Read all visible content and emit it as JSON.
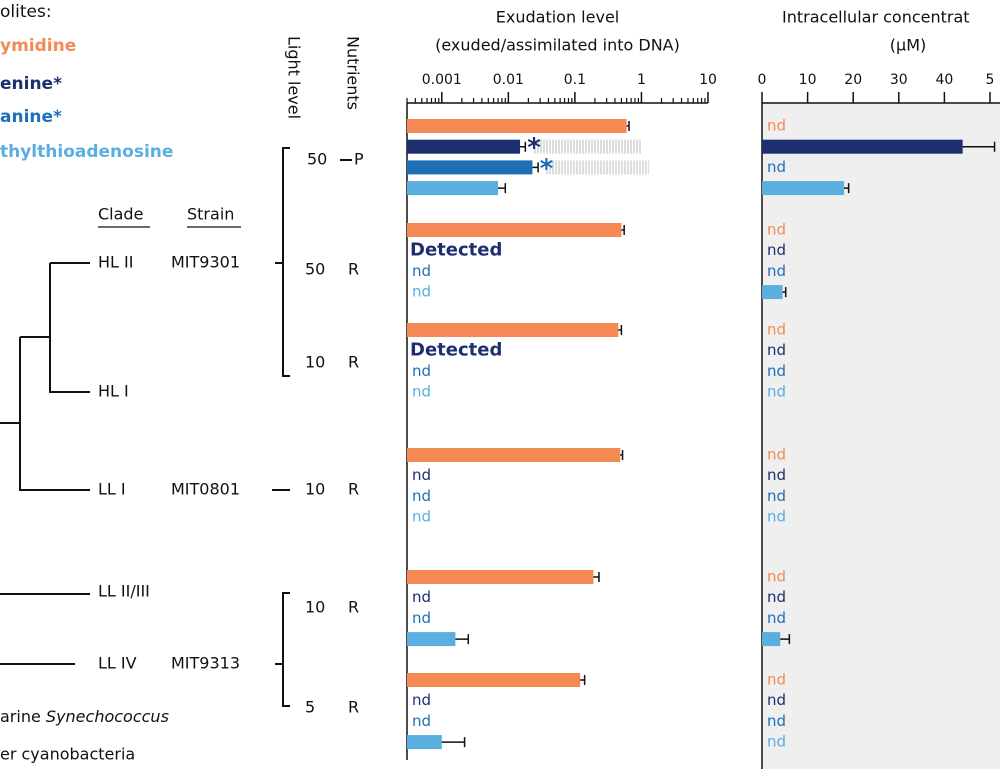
{
  "legend": {
    "title": "olites:"
  },
  "tree": {
    "headers": [
      "Clade",
      "Strain"
    ],
    "clades": [
      "HL II",
      "HL I",
      "LL I",
      "LL II/III",
      "LL IV"
    ],
    "strains": [
      "MIT9301",
      "MIT0801",
      "MIT9313"
    ],
    "outgroups": [
      "arine",
      "Synechococcus",
      "er cyanobacteria"
    ]
  },
  "conditions": {
    "headers": [
      "Light level",
      "Nutrients"
    ],
    "light": [
      50,
      50,
      10,
      10,
      10,
      5
    ],
    "nutrients": [
      "P",
      "R",
      "R",
      "R",
      "R",
      "R"
    ]
  },
  "chart_data": [
    {
      "type": "bar",
      "title": [
        "Exudation level",
        "(exuded/assimilated into DNA)"
      ],
      "log": true,
      "xlim": [
        0.0003,
        10
      ],
      "xticks": [
        0.001,
        0.01,
        0.1,
        1,
        10
      ],
      "series": [
        {
          "name": "ymidine",
          "color": "#f58a55",
          "values": [
            0.6,
            0.5,
            0.45,
            0.48,
            0.19,
            0.12
          ],
          "errors": [
            0.05,
            0.05,
            0.05,
            0.04,
            0.04,
            0.02
          ],
          "notes": [
            null,
            null,
            null,
            null,
            null,
            null
          ]
        },
        {
          "name": "enine*",
          "color": "#1d2f6f",
          "values": [
            0.015,
            null,
            null,
            null,
            null,
            null
          ],
          "errors": [
            0.003,
            null,
            null,
            null,
            null,
            null
          ],
          "notes": [
            null,
            "Detected",
            "Detected",
            "nd",
            "nd",
            "nd"
          ],
          "upper_values": [
            1,
            null,
            null,
            null,
            null,
            null
          ],
          "annotations": [
            "*",
            null,
            null,
            null,
            null,
            null
          ]
        },
        {
          "name": "anine*",
          "color": "#1f6fb8",
          "values": [
            0.023,
            null,
            null,
            null,
            null,
            null
          ],
          "errors": [
            0.005,
            null,
            null,
            null,
            null,
            null
          ],
          "notes": [
            null,
            "nd",
            "nd",
            "nd",
            "nd",
            "nd"
          ],
          "upper_values": [
            1.3,
            null,
            null,
            null,
            null,
            null
          ],
          "annotations": [
            "*",
            null,
            null,
            null,
            null,
            null
          ]
        },
        {
          "name": "thylthioadenosine",
          "color": "#5aaee0",
          "values": [
            0.007,
            null,
            null,
            null,
            0.0016,
            0.001
          ],
          "errors": [
            0.002,
            null,
            null,
            null,
            0.0009,
            0.0012
          ],
          "notes": [
            null,
            "nd",
            "nd",
            "nd",
            null,
            null
          ]
        }
      ]
    },
    {
      "type": "bar",
      "title": [
        "Intracellular concentrat",
        "(μM)"
      ],
      "log": false,
      "xlim": [
        0,
        50
      ],
      "xticks": [
        0,
        10,
        20,
        30,
        40,
        {
          "value": 50,
          "label": "5"
        }
      ],
      "background": "#efefef",
      "series": [
        {
          "color": "#f58a55",
          "values": [
            null,
            null,
            null,
            null,
            null,
            null
          ],
          "errors": [
            null,
            null,
            null,
            null,
            null,
            null
          ],
          "notes": [
            "nd",
            "nd",
            "nd",
            "nd",
            "nd",
            "nd"
          ]
        },
        {
          "color": "#1d2f6f",
          "values": [
            44,
            null,
            null,
            null,
            null,
            null
          ],
          "errors": [
            7,
            null,
            null,
            null,
            null,
            null
          ],
          "notes": [
            null,
            "nd",
            "nd",
            "nd",
            "nd",
            "nd"
          ]
        },
        {
          "color": "#1f6fb8",
          "values": [
            null,
            null,
            null,
            null,
            null,
            null
          ],
          "errors": [
            null,
            null,
            null,
            null,
            null,
            null
          ],
          "notes": [
            "nd",
            "nd",
            "nd",
            "nd",
            "nd",
            "nd"
          ]
        },
        {
          "color": "#5aaee0",
          "values": [
            18,
            4.5,
            null,
            null,
            4,
            null
          ],
          "errors": [
            1,
            0.7,
            null,
            null,
            2,
            null
          ],
          "notes": [
            null,
            null,
            "nd",
            "nd",
            null,
            "nd"
          ]
        }
      ]
    }
  ]
}
